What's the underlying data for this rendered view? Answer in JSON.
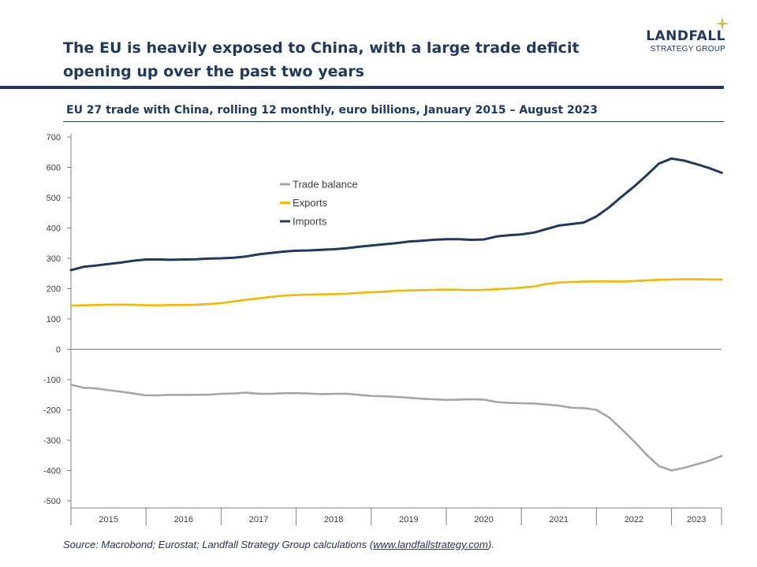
{
  "header": {
    "title": "The EU is heavily exposed to China, with a large trade deficit opening up over the past two years",
    "logo_main": "LANDFALL",
    "logo_sub": "STRATEGY GROUP",
    "brand_color": "#1f3864",
    "accent_color": "#d4b84a"
  },
  "source": {
    "prefix": "Source: Macrobond;  Eurostat;  Landfall Strategy Group calculations (",
    "link": "www.landfallstrategy.com",
    "suffix": ")."
  },
  "chart_data": {
    "type": "line",
    "title": "EU 27 trade with China, rolling 12 monthly, euro billions, January 2015 – August 2023",
    "xlabel": "",
    "ylabel": "",
    "ylim": [
      -520,
      720
    ],
    "yticks": [
      700,
      600,
      500,
      400,
      300,
      200,
      100,
      0,
      -100,
      -200,
      -300,
      -400,
      -500
    ],
    "xlim": [
      2015.0,
      2023.6667
    ],
    "year_labels": [
      "2015",
      "2016",
      "2017",
      "2018",
      "2019",
      "2020",
      "2021",
      "2022",
      "2023"
    ],
    "legend_position": "upper-center",
    "series": [
      {
        "name": "Trade balance",
        "color": "#a6a6a6",
        "points": [
          [
            2015.0,
            -117
          ],
          [
            2015.17,
            -127
          ],
          [
            2015.33,
            -129
          ],
          [
            2015.5,
            -135
          ],
          [
            2015.67,
            -140
          ],
          [
            2015.83,
            -146
          ],
          [
            2016.0,
            -152
          ],
          [
            2016.17,
            -152
          ],
          [
            2016.33,
            -150
          ],
          [
            2016.5,
            -151
          ],
          [
            2016.67,
            -150
          ],
          [
            2016.83,
            -150
          ],
          [
            2017.0,
            -147
          ],
          [
            2017.17,
            -146
          ],
          [
            2017.33,
            -143
          ],
          [
            2017.5,
            -147
          ],
          [
            2017.67,
            -147
          ],
          [
            2017.83,
            -145
          ],
          [
            2018.0,
            -145
          ],
          [
            2018.17,
            -146
          ],
          [
            2018.33,
            -148
          ],
          [
            2018.5,
            -147
          ],
          [
            2018.67,
            -147
          ],
          [
            2018.83,
            -150
          ],
          [
            2019.0,
            -154
          ],
          [
            2019.17,
            -155
          ],
          [
            2019.33,
            -157
          ],
          [
            2019.5,
            -160
          ],
          [
            2019.67,
            -163
          ],
          [
            2019.83,
            -165
          ],
          [
            2020.0,
            -167
          ],
          [
            2020.17,
            -166
          ],
          [
            2020.33,
            -165
          ],
          [
            2020.5,
            -166
          ],
          [
            2020.67,
            -174
          ],
          [
            2020.83,
            -177
          ],
          [
            2021.0,
            -178
          ],
          [
            2021.17,
            -179
          ],
          [
            2021.33,
            -182
          ],
          [
            2021.5,
            -186
          ],
          [
            2021.67,
            -193
          ],
          [
            2021.83,
            -194
          ],
          [
            2022.0,
            -200
          ],
          [
            2022.17,
            -225
          ],
          [
            2022.33,
            -262
          ],
          [
            2022.5,
            -303
          ],
          [
            2022.67,
            -348
          ],
          [
            2022.83,
            -385
          ],
          [
            2023.0,
            -400
          ],
          [
            2023.17,
            -391
          ],
          [
            2023.33,
            -380
          ],
          [
            2023.5,
            -368
          ],
          [
            2023.67,
            -352
          ]
        ]
      },
      {
        "name": "Exports",
        "color": "#f0b800",
        "points": [
          [
            2015.0,
            144
          ],
          [
            2015.17,
            145
          ],
          [
            2015.33,
            146
          ],
          [
            2015.5,
            147
          ],
          [
            2015.67,
            147
          ],
          [
            2015.83,
            147
          ],
          [
            2016.0,
            145
          ],
          [
            2016.17,
            145
          ],
          [
            2016.33,
            146
          ],
          [
            2016.5,
            146
          ],
          [
            2016.67,
            147
          ],
          [
            2016.83,
            149
          ],
          [
            2017.0,
            152
          ],
          [
            2017.17,
            158
          ],
          [
            2017.33,
            163
          ],
          [
            2017.5,
            168
          ],
          [
            2017.67,
            173
          ],
          [
            2017.83,
            177
          ],
          [
            2018.0,
            179
          ],
          [
            2018.17,
            180
          ],
          [
            2018.33,
            181
          ],
          [
            2018.5,
            182
          ],
          [
            2018.67,
            183
          ],
          [
            2018.83,
            186
          ],
          [
            2019.0,
            188
          ],
          [
            2019.17,
            190
          ],
          [
            2019.33,
            193
          ],
          [
            2019.5,
            194
          ],
          [
            2019.67,
            195
          ],
          [
            2019.83,
            196
          ],
          [
            2020.0,
            197
          ],
          [
            2020.17,
            196
          ],
          [
            2020.33,
            195
          ],
          [
            2020.5,
            196
          ],
          [
            2020.67,
            198
          ],
          [
            2020.83,
            200
          ],
          [
            2021.0,
            203
          ],
          [
            2021.17,
            207
          ],
          [
            2021.33,
            215
          ],
          [
            2021.5,
            220
          ],
          [
            2021.67,
            222
          ],
          [
            2021.83,
            223
          ],
          [
            2022.0,
            224
          ],
          [
            2022.17,
            224
          ],
          [
            2022.33,
            223
          ],
          [
            2022.5,
            225
          ],
          [
            2022.67,
            227
          ],
          [
            2022.83,
            229
          ],
          [
            2023.0,
            230
          ],
          [
            2023.17,
            231
          ],
          [
            2023.33,
            231
          ],
          [
            2023.5,
            230
          ],
          [
            2023.67,
            230
          ]
        ]
      },
      {
        "name": "Imports",
        "color": "#1f3864",
        "points": [
          [
            2015.0,
            261
          ],
          [
            2015.17,
            272
          ],
          [
            2015.33,
            276
          ],
          [
            2015.5,
            281
          ],
          [
            2015.67,
            286
          ],
          [
            2015.83,
            292
          ],
          [
            2016.0,
            296
          ],
          [
            2016.17,
            296
          ],
          [
            2016.33,
            295
          ],
          [
            2016.5,
            296
          ],
          [
            2016.67,
            297
          ],
          [
            2016.83,
            299
          ],
          [
            2017.0,
            300
          ],
          [
            2017.17,
            302
          ],
          [
            2017.33,
            306
          ],
          [
            2017.5,
            313
          ],
          [
            2017.67,
            318
          ],
          [
            2017.83,
            322
          ],
          [
            2018.0,
            325
          ],
          [
            2018.17,
            326
          ],
          [
            2018.33,
            328
          ],
          [
            2018.5,
            330
          ],
          [
            2018.67,
            333
          ],
          [
            2018.83,
            338
          ],
          [
            2019.0,
            342
          ],
          [
            2019.17,
            346
          ],
          [
            2019.33,
            350
          ],
          [
            2019.5,
            355
          ],
          [
            2019.67,
            358
          ],
          [
            2019.83,
            361
          ],
          [
            2020.0,
            363
          ],
          [
            2020.17,
            363
          ],
          [
            2020.33,
            361
          ],
          [
            2020.5,
            362
          ],
          [
            2020.67,
            372
          ],
          [
            2020.83,
            376
          ],
          [
            2021.0,
            379
          ],
          [
            2021.17,
            385
          ],
          [
            2021.33,
            396
          ],
          [
            2021.5,
            408
          ],
          [
            2021.67,
            413
          ],
          [
            2021.83,
            418
          ],
          [
            2022.0,
            438
          ],
          [
            2022.17,
            468
          ],
          [
            2022.33,
            502
          ],
          [
            2022.5,
            536
          ],
          [
            2022.67,
            574
          ],
          [
            2022.83,
            612
          ],
          [
            2023.0,
            629
          ],
          [
            2023.17,
            622
          ],
          [
            2023.33,
            611
          ],
          [
            2023.5,
            598
          ],
          [
            2023.67,
            582
          ]
        ]
      }
    ]
  }
}
